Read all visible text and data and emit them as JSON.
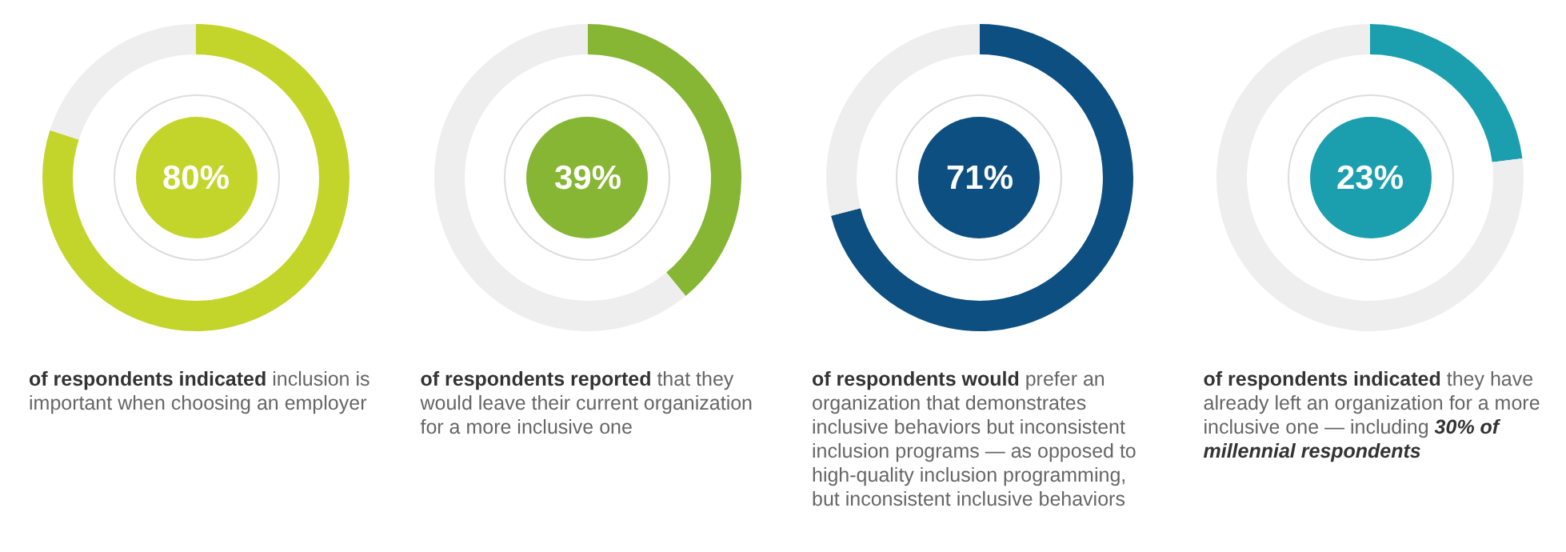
{
  "chart_data": [
    {
      "type": "donut",
      "title": "80%",
      "categories": [
        null,
        null
      ],
      "values": [
        80,
        20
      ],
      "colors": [
        "#c3d52b",
        "#eeeeee"
      ],
      "annotations": [
        "of respondents indicated",
        "inclusion is important when choosing an employer"
      ]
    },
    {
      "type": "donut",
      "title": "39%",
      "categories": [
        null,
        null
      ],
      "values": [
        39,
        61
      ],
      "colors": [
        "#86b633",
        "#eeeeee"
      ],
      "annotations": [
        "of respondents reported",
        "that they would leave their current organization for a more inclusive one"
      ]
    },
    {
      "type": "donut",
      "title": "71%",
      "categories": [
        null,
        null
      ],
      "values": [
        71,
        29
      ],
      "colors": [
        "#0d4f80",
        "#eeeeee"
      ],
      "annotations": [
        "of respondents would",
        "prefer an organization that demonstrates inclusive behaviors but inconsistent inclusion programs — as opposed to high-quality inclusion programming, but inconsistent inclusive behaviors"
      ]
    },
    {
      "type": "donut",
      "title": "23%",
      "categories": [
        null,
        null
      ],
      "values": [
        23,
        77
      ],
      "colors": [
        "#1b9fae",
        "#eeeeee"
      ],
      "annotations": [
        "of respondents indicated",
        "they have already left an organization for a more inclusive one — including",
        "30% of millennial respondents"
      ]
    }
  ]
}
